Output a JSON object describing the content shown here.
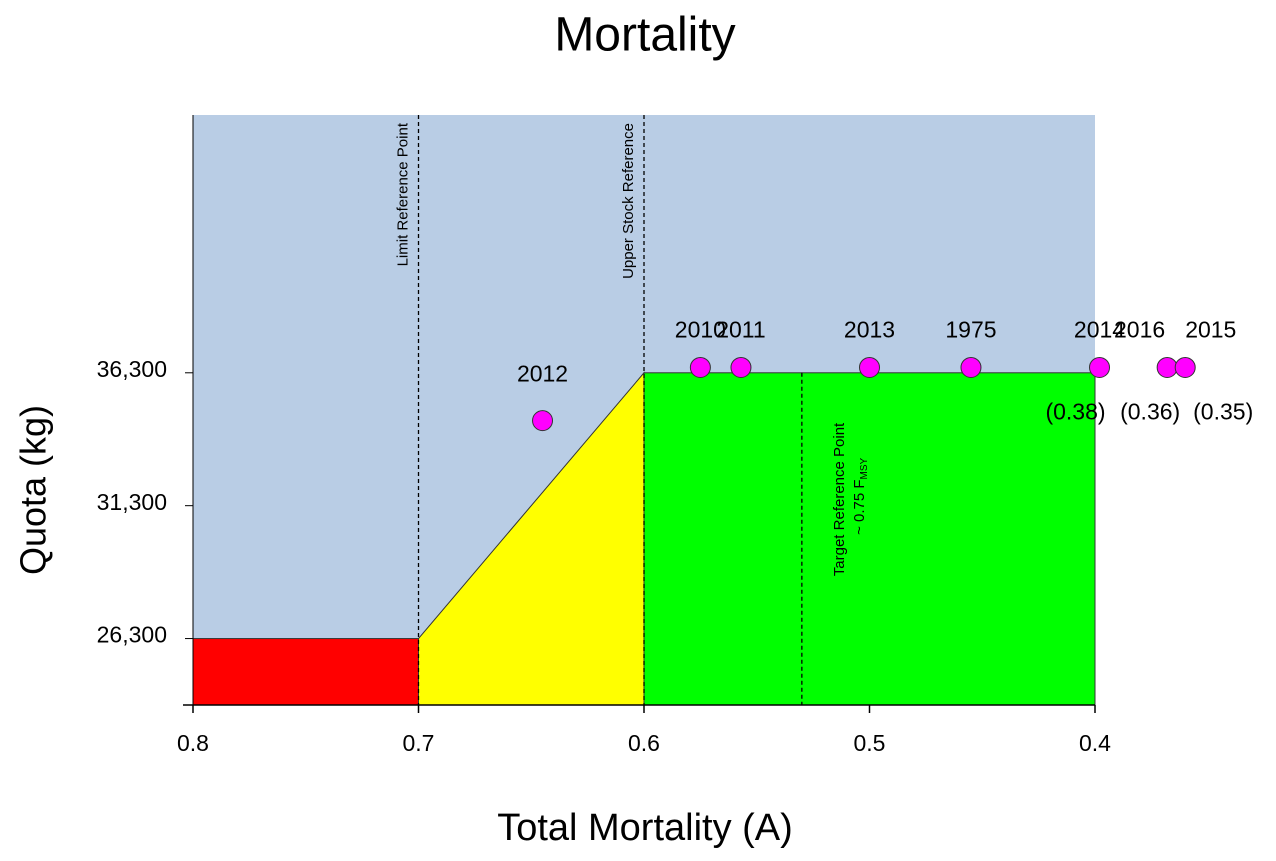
{
  "chart_data": {
    "type": "scatter",
    "title": "Mortality",
    "x_label": "Total Mortality (A)",
    "y_label": "Quota (kg)",
    "xlim": [
      0.8,
      0.4
    ],
    "ylim": [
      23800,
      46000
    ],
    "xticks": [
      0.8,
      0.7,
      0.6,
      0.5,
      0.4
    ],
    "yticks": [
      {
        "value": 26300,
        "label": "26,300"
      },
      {
        "value": 31300,
        "label": "31,300"
      },
      {
        "value": 36300,
        "label": "36,300"
      }
    ],
    "zone_colors": {
      "background": "#b9cde5",
      "critical": "#ff0000",
      "cautious": "#ffff00",
      "healthy": "#00ff00"
    },
    "limit_quota": 26300,
    "upper_quota": 36300,
    "reference_lines": [
      {
        "label": "Limit Reference Point",
        "x": 0.7
      },
      {
        "label": "Upper Stock Reference",
        "x": 0.6
      },
      {
        "label": "Target Reference Point",
        "sublabel": "~ 0.75 F",
        "subscript": "MSY",
        "x": 0.53,
        "top": 36300
      }
    ],
    "series": [
      {
        "color": "#ff00ff",
        "labels": [
          "2012",
          "2010",
          "2011",
          "2013",
          "1975",
          "2014",
          "2016",
          "2015"
        ],
        "x": [
          0.645,
          0.575,
          0.557,
          0.5,
          0.455,
          0.398,
          0.368,
          0.36
        ],
        "values": [
          34500,
          36500,
          36500,
          36500,
          36500,
          36500,
          36500,
          36500
        ]
      }
    ],
    "annotations": [
      "(0.38)",
      "(0.36)",
      "(0.35)"
    ]
  }
}
